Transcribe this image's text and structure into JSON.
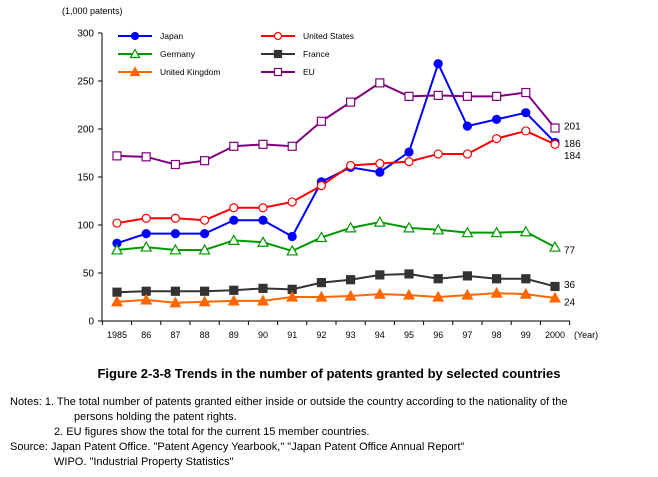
{
  "chart_data": {
    "type": "line",
    "ylabel": "(1,000 patents)",
    "xlabel": "(Year)",
    "ylim": [
      0,
      300
    ],
    "yticks": [
      0,
      50,
      100,
      150,
      200,
      250,
      300
    ],
    "grid": false,
    "legend_placement": "top-left",
    "categories": [
      "1985",
      "86",
      "87",
      "88",
      "89",
      "90",
      "91",
      "92",
      "93",
      "94",
      "95",
      "96",
      "97",
      "98",
      "99",
      "2000"
    ],
    "series": [
      {
        "name": "Japan",
        "color": "#0000ff",
        "marker": "filled-circle",
        "values": [
          81,
          91,
          91,
          91,
          105,
          105,
          88,
          145,
          160,
          155,
          176,
          268,
          203,
          210,
          217,
          186
        ]
      },
      {
        "name": "United States",
        "color": "#ff0000",
        "marker": "open-circle",
        "values": [
          102,
          107,
          107,
          105,
          118,
          118,
          124,
          141,
          162,
          164,
          166,
          174,
          174,
          190,
          198,
          184
        ]
      },
      {
        "name": "Germany",
        "color": "#009900",
        "marker": "open-triangle",
        "values": [
          74,
          77,
          74,
          74,
          84,
          82,
          73,
          87,
          97,
          103,
          97,
          95,
          92,
          92,
          93,
          77
        ]
      },
      {
        "name": "France",
        "color": "#333333",
        "marker": "filled-square",
        "values": [
          30,
          31,
          31,
          31,
          32,
          34,
          33,
          40,
          43,
          48,
          49,
          44,
          47,
          44,
          44,
          36
        ]
      },
      {
        "name": "United Kingdom",
        "color": "#ff6600",
        "marker": "filled-triangle",
        "values": [
          20,
          22,
          19,
          20,
          21,
          21,
          25,
          25,
          26,
          28,
          27,
          25,
          27,
          29,
          28,
          24
        ]
      },
      {
        "name": "EU",
        "color": "#800080",
        "marker": "open-square",
        "values": [
          172,
          171,
          163,
          167,
          182,
          184,
          182,
          208,
          228,
          248,
          234,
          235,
          234,
          234,
          238,
          201
        ]
      }
    ],
    "end_labels": [
      {
        "series": "EU",
        "text": "201"
      },
      {
        "series": "Japan",
        "text": "186"
      },
      {
        "series": "United States",
        "text": "184"
      },
      {
        "series": "Germany",
        "text": "77"
      },
      {
        "series": "France",
        "text": "36"
      },
      {
        "series": "United Kingdom",
        "text": "24"
      }
    ]
  },
  "caption": "Figure 2-3-8  Trends in the number of patents granted by selected countries",
  "notes": {
    "line1": "Notes: 1. The total number of patents granted either inside or outside the country according to the nationality of the",
    "line1b": "persons holding the patent rights.",
    "line2": "2. EU figures show the total for the current 15 member countries.",
    "source1": "Source: Japan Patent Office. \"Patent Agency Yearbook,\" \"Japan Patent Office Annual Report\"",
    "source2": "WIPO. \"Industrial Property Statistics\""
  }
}
